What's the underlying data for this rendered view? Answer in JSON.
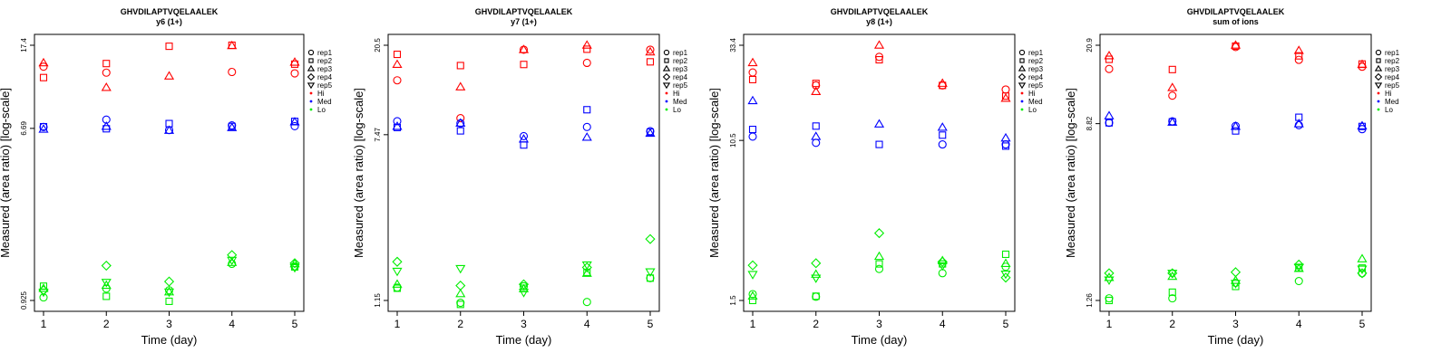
{
  "colors": {
    "Hi": "#ff0000",
    "Med": "#0000ff",
    "Lo": "#00ee00"
  },
  "legend": {
    "reps": [
      {
        "label": "rep1",
        "shape": "circle"
      },
      {
        "label": "rep2",
        "shape": "square"
      },
      {
        "label": "rep3",
        "shape": "triangle-up"
      },
      {
        "label": "rep4",
        "shape": "diamond"
      },
      {
        "label": "rep5",
        "shape": "triangle-down"
      }
    ],
    "groups": [
      {
        "label": "Hi",
        "color": "#ff0000"
      },
      {
        "label": "Med",
        "color": "#0000ff"
      },
      {
        "label": "Lo",
        "color": "#00ee00"
      }
    ]
  },
  "chart_data": [
    {
      "type": "scatter",
      "title": "GHVDILAPTVQELAALEK",
      "subtitle": "y6 (1+)",
      "xlabel": "Time (day)",
      "ylabel": "Measured (area ratio) [log-scale]",
      "log_y": true,
      "ylim": [
        0.925,
        17.4
      ],
      "yticks": [
        {
          "value": 0.925,
          "label": "0.925"
        },
        {
          "value": 6.69,
          "label": "6.69"
        },
        {
          "value": 17.4,
          "label": "17.4"
        }
      ],
      "xticks": [
        1,
        2,
        3,
        4,
        5
      ],
      "series": [
        {
          "name": "Hi",
          "values": [
            [
              13.6,
              12.7,
              null,
              12.8,
              12.6
            ],
            [
              12.0,
              14.1,
              17.2,
              17.4,
              14.0
            ],
            [
              14.2,
              10.7,
              12.2,
              17.3,
              14.3
            ],
            [
              null,
              null,
              null,
              null,
              null
            ],
            [
              null,
              null,
              null,
              null,
              null
            ]
          ]
        },
        {
          "name": "Med",
          "values": [
            [
              6.8,
              7.4,
              6.56,
              6.92,
              6.86
            ],
            [
              6.82,
              6.66,
              7.07,
              6.84,
              7.25
            ],
            [
              6.62,
              6.84,
              6.53,
              6.74,
              7.2
            ],
            [
              null,
              null,
              null,
              null,
              null
            ],
            [
              null,
              null,
              null,
              null,
              null
            ]
          ]
        },
        {
          "name": "Lo",
          "values": [
            [
              0.958,
              1.06,
              1.04,
              1.41,
              1.37
            ],
            [
              1.09,
              0.97,
              0.916,
              null,
              1.36
            ],
            [
              1.06,
              1.1,
              1.02,
              1.43,
              1.41
            ],
            [
              1.04,
              1.38,
              1.15,
              1.56,
              1.42
            ],
            [
              1.02,
              1.14,
              1.02,
              1.47,
              1.35
            ]
          ]
        }
      ]
    },
    {
      "type": "scatter",
      "title": "GHVDILAPTVQELAALEK",
      "subtitle": "y7 (1+)",
      "xlabel": "Time (day)",
      "ylabel": "Measured (area ratio) [log-scale]",
      "log_y": true,
      "ylim": [
        1.15,
        20.5
      ],
      "yticks": [
        {
          "value": 1.15,
          "label": "1.15"
        },
        {
          "value": 7.47,
          "label": "7.47"
        },
        {
          "value": 20.5,
          "label": "20.5"
        }
      ],
      "xticks": [
        1,
        2,
        3,
        4,
        5
      ],
      "series": [
        {
          "name": "Hi",
          "values": [
            [
              13.8,
              9.0,
              19.5,
              16.8,
              19.5
            ],
            [
              18.5,
              16.3,
              16.5,
              19.6,
              17.0
            ],
            [
              16.5,
              12.8,
              19.5,
              20.5,
              19.0
            ],
            [
              null,
              null,
              null,
              null,
              null
            ],
            [
              null,
              null,
              null,
              null,
              null
            ]
          ]
        },
        {
          "name": "Med",
          "values": [
            [
              8.7,
              8.5,
              7.35,
              8.15,
              7.77
            ],
            [
              8.1,
              7.8,
              6.65,
              9.9,
              7.69
            ],
            [
              8.2,
              8.5,
              7.1,
              7.25,
              7.58
            ],
            [
              null,
              null,
              null,
              null,
              null
            ],
            [
              null,
              null,
              null,
              null,
              null
            ]
          ]
        },
        {
          "name": "Lo",
          "values": [
            [
              1.33,
              1.12,
              1.35,
              1.13,
              1.48
            ],
            [
              1.32,
              1.1,
              1.32,
              1.58,
              1.48
            ],
            [
              1.38,
              1.24,
              1.31,
              1.56,
              null
            ],
            [
              1.78,
              1.36,
              1.38,
              1.67,
              2.3
            ],
            [
              1.6,
              1.65,
              1.26,
              1.72,
              1.59
            ]
          ]
        }
      ]
    },
    {
      "type": "scatter",
      "title": "GHVDILAPTVQELAALEK",
      "subtitle": "y8 (1+)",
      "xlabel": "Time (day)",
      "ylabel": "Measured (area ratio) [log-scale]",
      "log_y": true,
      "ylim": [
        1.5,
        33.4
      ],
      "yticks": [
        {
          "value": 1.5,
          "label": "1.5"
        },
        {
          "value": 10.5,
          "label": "10.5"
        },
        {
          "value": 33.4,
          "label": "33.4"
        }
      ],
      "xticks": [
        1,
        2,
        3,
        4,
        5
      ],
      "series": [
        {
          "name": "Hi",
          "values": [
            [
              24.0,
              20.5,
              29.0,
              20.5,
              19.5
            ],
            [
              22.0,
              21.0,
              28.0,
              20.5,
              18.0
            ],
            [
              27.0,
              19.0,
              33.4,
              21.0,
              17.5
            ],
            [
              null,
              null,
              null,
              null,
              null
            ],
            [
              null,
              null,
              null,
              null,
              null
            ]
          ]
        },
        {
          "name": "Med",
          "values": [
            [
              11.0,
              10.2,
              null,
              10.0,
              10.0
            ],
            [
              12.0,
              12.5,
              10.0,
              11.2,
              9.8
            ],
            [
              17.0,
              11.0,
              12.8,
              12.3,
              10.8
            ],
            [
              null,
              null,
              null,
              null,
              null
            ],
            [
              null,
              null,
              null,
              null,
              null
            ]
          ]
        },
        {
          "name": "Lo",
          "values": [
            [
              1.62,
              1.57,
              2.2,
              2.09,
              2.26
            ],
            [
              1.5,
              1.58,
              2.34,
              2.34,
              2.63
            ],
            [
              1.58,
              2.06,
              2.56,
              2.43,
              2.35
            ],
            [
              2.3,
              2.36,
              3.4,
              2.4,
              1.98
            ],
            [
              2.06,
              1.97,
              null,
              2.29,
              2.07
            ]
          ]
        }
      ]
    },
    {
      "type": "scatter",
      "title": "GHVDILAPTVQELAALEK",
      "subtitle": "sum of ions",
      "xlabel": "Time (day)",
      "ylabel": "Measured (area ratio) [log-scale]",
      "log_y": true,
      "ylim": [
        1.26,
        20.9
      ],
      "yticks": [
        {
          "value": 1.26,
          "label": "1.26"
        },
        {
          "value": 8.82,
          "label": "8.82"
        },
        {
          "value": 20.9,
          "label": "20.9"
        }
      ],
      "xticks": [
        1,
        2,
        3,
        4,
        5
      ],
      "series": [
        {
          "name": "Hi",
          "values": [
            [
              16.1,
              12.0,
              20.5,
              17.8,
              16.5
            ],
            [
              17.9,
              16.0,
              20.7,
              18.6,
              17.0
            ],
            [
              18.6,
              13.1,
              20.9,
              19.7,
              16.9
            ],
            [
              null,
              null,
              null,
              null,
              null
            ],
            [
              null,
              null,
              null,
              null,
              null
            ]
          ]
        },
        {
          "name": "Med",
          "values": [
            [
              8.9,
              9.05,
              8.6,
              8.67,
              8.3
            ],
            [
              8.9,
              9.0,
              8.14,
              9.46,
              8.55
            ],
            [
              9.6,
              8.95,
              8.55,
              8.8,
              8.6
            ],
            [
              null,
              null,
              null,
              null,
              null
            ],
            [
              null,
              null,
              null,
              null,
              null
            ]
          ]
        },
        {
          "name": "Lo",
          "values": [
            [
              1.29,
              1.29,
              1.53,
              1.56,
              1.7
            ],
            [
              1.26,
              1.38,
              1.47,
              1.8,
              1.8
            ],
            [
              1.62,
              1.64,
              1.57,
              1.79,
              1.99
            ],
            [
              1.7,
              1.7,
              1.72,
              1.87,
              1.7
            ],
            [
              1.58,
              1.7,
              1.52,
              1.82,
              1.78
            ]
          ]
        }
      ]
    }
  ]
}
